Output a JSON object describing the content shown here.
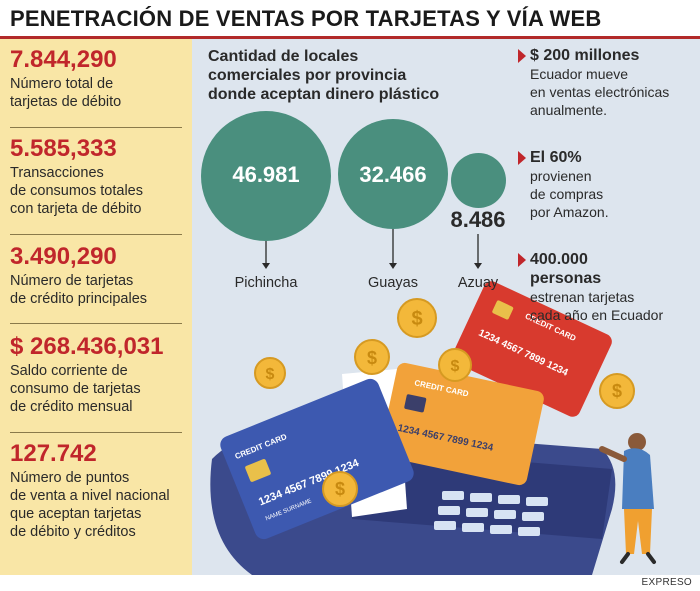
{
  "title": "PENETRACIÓN DE VENTAS POR TARJETAS Y VÍA WEB",
  "stats": [
    {
      "value": "7.844,290",
      "label_lines": [
        "Número total de",
        "tarjetas de débito"
      ]
    },
    {
      "value": "5.585,333",
      "label_lines": [
        "Transacciones",
        "de consumos totales",
        "con tarjeta de débito"
      ]
    },
    {
      "value": "3.490,290",
      "label_lines": [
        "Número de tarjetas",
        "de crédito principales"
      ]
    },
    {
      "value": "$ 268.436,031",
      "label_lines": [
        "Saldo corriente de",
        "consumo de tarjetas",
        "de crédito mensual"
      ]
    },
    {
      "value": "127.742",
      "label_lines": [
        "Número de puntos",
        "de venta a nivel nacional",
        "que aceptan tarjetas",
        "de débito y créditos"
      ]
    }
  ],
  "chart": {
    "title_lines": [
      "Cantidad de locales",
      "comerciales por provincia",
      "donde aceptan dinero plástico"
    ],
    "provinces": [
      {
        "name": "Pichincha",
        "value": "46.981"
      },
      {
        "name": "Guayas",
        "value": "32.466"
      },
      {
        "name": "Azuay",
        "value": "8.486"
      }
    ]
  },
  "facts": [
    {
      "headline_lines": [
        "$ 200 millones"
      ],
      "text_lines": [
        "Ecuador mueve",
        "en ventas electrónicas",
        "anualmente."
      ]
    },
    {
      "headline_lines": [
        "El 60%"
      ],
      "text_lines": [
        "provienen",
        "de compras",
        "por Amazon."
      ]
    },
    {
      "headline_lines": [
        "400.000",
        "personas"
      ],
      "text_lines": [
        "estrenan tarjetas",
        "cada año en Ecuador"
      ]
    }
  ],
  "illustration": {
    "card_label": "CREDIT CARD",
    "card_number": "1234 4567 7899 1234",
    "card_sub": "NAME SURNAME",
    "coin_symbol": "$"
  },
  "source": "EXPRESO",
  "colors": {
    "accent": "#c0262b",
    "bubble": "#4a8f7e",
    "panel_left": "#f9e6a6",
    "panel_right": "#dde5ee"
  }
}
